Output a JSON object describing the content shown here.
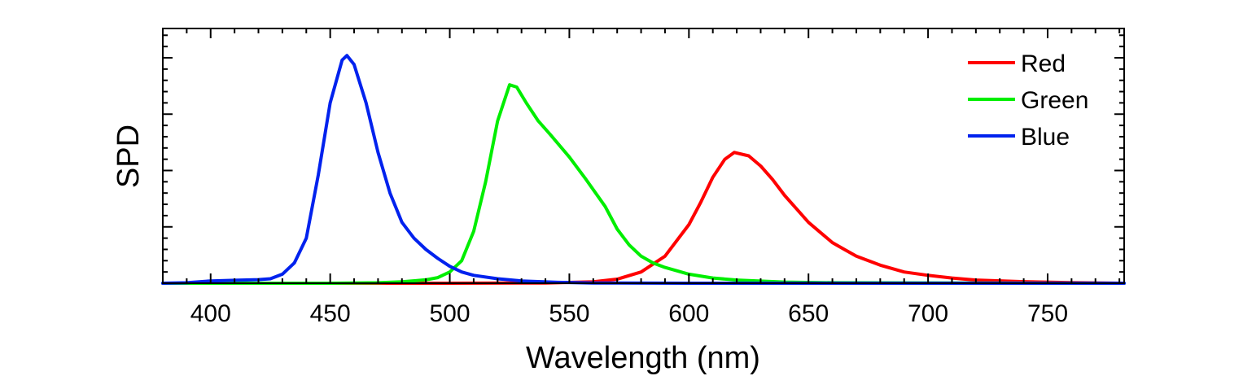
{
  "chart_data": {
    "type": "line",
    "title": "",
    "xlabel": "Wavelength (nm)",
    "ylabel": "SPD",
    "xlim": [
      380,
      782
    ],
    "ylim": [
      0,
      1.13
    ],
    "xticks": [
      400,
      450,
      500,
      550,
      600,
      650,
      700,
      750
    ],
    "yticks_major": [
      0,
      0.25,
      0.5,
      0.75,
      1.0
    ],
    "y_tick_labels_shown": false,
    "grid": false,
    "legend_position": "top-right",
    "series": [
      {
        "name": "Red",
        "color": "#ff0000",
        "points": [
          [
            380,
            0.0
          ],
          [
            500,
            0.0
          ],
          [
            540,
            0.001
          ],
          [
            560,
            0.006
          ],
          [
            570,
            0.018
          ],
          [
            580,
            0.05
          ],
          [
            590,
            0.12
          ],
          [
            600,
            0.26
          ],
          [
            605,
            0.36
          ],
          [
            610,
            0.47
          ],
          [
            615,
            0.55
          ],
          [
            619,
            0.58
          ],
          [
            625,
            0.565
          ],
          [
            630,
            0.52
          ],
          [
            635,
            0.46
          ],
          [
            640,
            0.39
          ],
          [
            645,
            0.33
          ],
          [
            650,
            0.27
          ],
          [
            655,
            0.225
          ],
          [
            660,
            0.18
          ],
          [
            665,
            0.15
          ],
          [
            670,
            0.12
          ],
          [
            680,
            0.08
          ],
          [
            690,
            0.05
          ],
          [
            700,
            0.035
          ],
          [
            710,
            0.023
          ],
          [
            720,
            0.014
          ],
          [
            740,
            0.007
          ],
          [
            760,
            0.003
          ],
          [
            782,
            0.0
          ]
        ]
      },
      {
        "name": "Green",
        "color": "#00ee00",
        "points": [
          [
            380,
            0.0
          ],
          [
            450,
            0.0
          ],
          [
            470,
            0.002
          ],
          [
            480,
            0.006
          ],
          [
            490,
            0.015
          ],
          [
            495,
            0.025
          ],
          [
            500,
            0.05
          ],
          [
            505,
            0.1
          ],
          [
            510,
            0.23
          ],
          [
            515,
            0.45
          ],
          [
            520,
            0.72
          ],
          [
            525,
            0.88
          ],
          [
            528,
            0.87
          ],
          [
            532,
            0.8
          ],
          [
            537,
            0.72
          ],
          [
            542,
            0.66
          ],
          [
            550,
            0.56
          ],
          [
            557,
            0.46
          ],
          [
            565,
            0.34
          ],
          [
            570,
            0.24
          ],
          [
            575,
            0.17
          ],
          [
            580,
            0.12
          ],
          [
            585,
            0.09
          ],
          [
            590,
            0.07
          ],
          [
            600,
            0.04
          ],
          [
            610,
            0.023
          ],
          [
            620,
            0.014
          ],
          [
            640,
            0.005
          ],
          [
            660,
            0.002
          ],
          [
            782,
            0.0
          ]
        ]
      },
      {
        "name": "Blue",
        "color": "#0022ee",
        "points": [
          [
            380,
            0.0
          ],
          [
            390,
            0.002
          ],
          [
            400,
            0.01
          ],
          [
            410,
            0.013
          ],
          [
            420,
            0.016
          ],
          [
            425,
            0.02
          ],
          [
            430,
            0.04
          ],
          [
            435,
            0.09
          ],
          [
            440,
            0.2
          ],
          [
            445,
            0.48
          ],
          [
            450,
            0.8
          ],
          [
            455,
            0.99
          ],
          [
            457,
            1.01
          ],
          [
            460,
            0.97
          ],
          [
            465,
            0.8
          ],
          [
            470,
            0.58
          ],
          [
            475,
            0.4
          ],
          [
            480,
            0.27
          ],
          [
            485,
            0.2
          ],
          [
            490,
            0.15
          ],
          [
            495,
            0.11
          ],
          [
            500,
            0.075
          ],
          [
            505,
            0.05
          ],
          [
            510,
            0.035
          ],
          [
            520,
            0.02
          ],
          [
            530,
            0.01
          ],
          [
            545,
            0.004
          ],
          [
            560,
            0.001
          ],
          [
            600,
            0.0
          ],
          [
            782,
            0.0
          ]
        ]
      }
    ]
  }
}
